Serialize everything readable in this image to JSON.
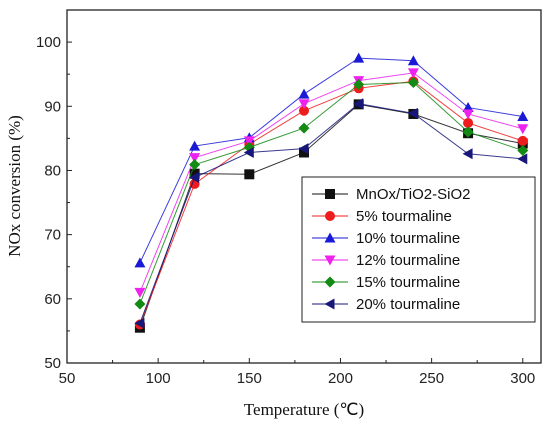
{
  "chart_data": {
    "type": "line",
    "title": "",
    "xlabel": "Temperature (℃)",
    "ylabel": "NOx conversion (%)",
    "xlim": [
      50,
      310
    ],
    "ylim": [
      50,
      105
    ],
    "xticks": [
      50,
      100,
      150,
      200,
      250,
      300
    ],
    "yticks": [
      50,
      60,
      70,
      80,
      90,
      100
    ],
    "grid": false,
    "legend_position": "right",
    "x": [
      90,
      120,
      150,
      180,
      210,
      240,
      270,
      300
    ],
    "series": [
      {
        "name": "MnOx/TiO2-SiO2",
        "color": "#111111",
        "marker": "square",
        "values": [
          55.5,
          79.5,
          79.4,
          82.8,
          90.3,
          88.8,
          85.8,
          84.2
        ]
      },
      {
        "name": "5% tourmaline",
        "color": "#ee1c1c",
        "marker": "circle",
        "values": [
          56.0,
          77.9,
          84.1,
          89.3,
          92.8,
          93.9,
          87.4,
          84.6
        ]
      },
      {
        "name": "10% tourmaline",
        "color": "#1a1ad6",
        "marker": "triangle-up",
        "values": [
          65.6,
          83.8,
          85.1,
          91.9,
          97.5,
          97.1,
          89.8,
          88.4
        ]
      },
      {
        "name": "12% tourmaline",
        "color": "#ee22ee",
        "marker": "triangle-down",
        "values": [
          61.0,
          82.0,
          84.6,
          90.4,
          94.0,
          95.2,
          88.8,
          86.5
        ]
      },
      {
        "name": "15% tourmaline",
        "color": "#138a13",
        "marker": "diamond",
        "values": [
          59.2,
          80.9,
          83.6,
          86.6,
          93.4,
          93.7,
          86.0,
          83.1
        ]
      },
      {
        "name": "20% tourmaline",
        "color": "#17177a",
        "marker": "triangle-left",
        "values": [
          56.2,
          78.9,
          82.8,
          83.4,
          90.4,
          88.9,
          82.6,
          81.8
        ]
      }
    ]
  }
}
